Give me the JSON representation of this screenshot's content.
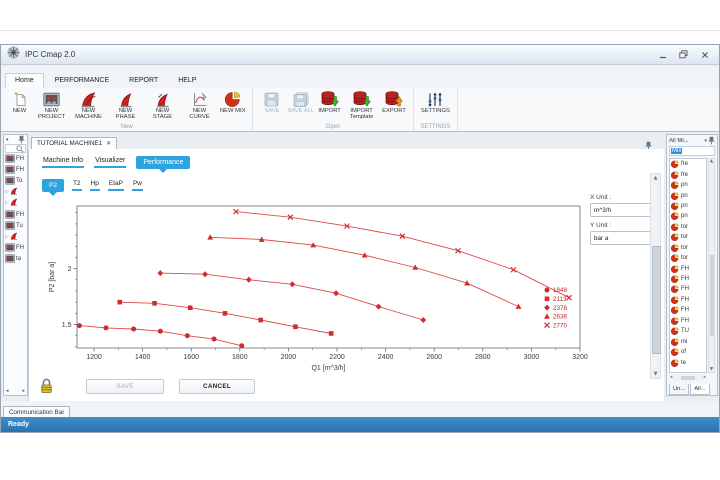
{
  "app": {
    "title": "IPC Cmap 2.0"
  },
  "menu_tabs": [
    {
      "label": "Home",
      "active": true
    },
    {
      "label": "PERFORMANCE",
      "active": false
    },
    {
      "label": "REPORT",
      "active": false
    },
    {
      "label": "HELP",
      "active": false
    }
  ],
  "ribbon_groups": [
    {
      "label": "New",
      "buttons": [
        {
          "label": "NEW",
          "icon": "new-document-icon",
          "disabled": false
        },
        {
          "label": "NEW PROJECT",
          "icon": "new-project-icon",
          "disabled": false
        },
        {
          "label": "NEW MACHINE",
          "icon": "new-machine-icon",
          "disabled": false
        },
        {
          "label": "NEW PHASE",
          "icon": "new-phase-icon",
          "disabled": false
        },
        {
          "label": "NEW STAGE",
          "icon": "new-stage-icon",
          "disabled": false
        },
        {
          "label": "NEW CURVE",
          "icon": "new-curve-icon",
          "disabled": false
        },
        {
          "label": "NEW MIX",
          "icon": "new-mix-icon",
          "disabled": false
        }
      ]
    },
    {
      "label": "Open",
      "buttons": [
        {
          "label": "SAVE",
          "icon": "save-icon",
          "disabled": true
        },
        {
          "label": "SAVE ALL",
          "icon": "save-all-icon",
          "disabled": true
        },
        {
          "label": "IMPORT",
          "icon": "import-icon",
          "disabled": false
        },
        {
          "label": "IMPORT Template",
          "icon": "import-template-icon",
          "disabled": false
        },
        {
          "label": "EXPORT",
          "icon": "export-icon",
          "disabled": false
        }
      ]
    },
    {
      "label": "SETTINGS",
      "buttons": [
        {
          "label": "SETTINGS",
          "icon": "settings-icon",
          "disabled": false
        }
      ]
    }
  ],
  "left_panel": {
    "items": [
      {
        "label": "FH",
        "type": "project"
      },
      {
        "label": "FH",
        "type": "project"
      },
      {
        "label": "To",
        "type": "project"
      },
      {
        "label": "",
        "type": "machine"
      },
      {
        "label": "",
        "type": "machine"
      },
      {
        "label": "FH",
        "type": "project"
      },
      {
        "label": "Tu",
        "type": "project"
      },
      {
        "label": "",
        "type": "machine"
      },
      {
        "label": "FH",
        "type": "project"
      },
      {
        "label": "ta",
        "type": "project"
      }
    ]
  },
  "document": {
    "tab_title": "TUTORIAL MACHINE1",
    "close_glyph": "✕",
    "nav": [
      {
        "label": "Machine Info",
        "active": false
      },
      {
        "label": "Visualizer",
        "active": false
      },
      {
        "label": "Performance",
        "active": true
      }
    ],
    "subnav": [
      {
        "label": "P2",
        "active": true
      },
      {
        "label": "T2",
        "active": false
      },
      {
        "label": "Hp",
        "active": false
      },
      {
        "label": "EtaP",
        "active": false
      },
      {
        "label": "Pw",
        "active": false
      }
    ],
    "x_unit_label": "X Unit :",
    "x_unit_value": "m^3/h",
    "y_unit_label": "Y Unit :",
    "y_unit_value": "bar a",
    "save_label": "SAVE",
    "cancel_label": "CANCEL"
  },
  "right_panel": {
    "title": "All Mi...",
    "filter_text": "Mix",
    "items": [
      "fre",
      "fre",
      "pn",
      "pn",
      "pn",
      "pn",
      "tor",
      "tor",
      "tor",
      "tor",
      "FH",
      "FH",
      "FH",
      "FH",
      "FH",
      "FH",
      "TU",
      "mi",
      "of",
      "te"
    ],
    "tabs": [
      {
        "label": "Un...",
        "active": false
      },
      {
        "label": "All...",
        "active": true
      }
    ]
  },
  "statusbar": {
    "communication_tab": "Communication Bar",
    "status_text": "Ready"
  },
  "colors": {
    "accent_blue": "#2ea4de",
    "curve_red": "#d42a2a",
    "legend_red": "#c22026",
    "status_blue": "#2a72b0"
  },
  "chart_data": {
    "type": "line",
    "title": "",
    "xlabel": "Q1 [m^3/h]",
    "ylabel": "P2 [bar a]",
    "xlim": [
      1130,
      3200
    ],
    "ylim": [
      1.29,
      2.56
    ],
    "x_ticks": [
      1200,
      1400,
      1600,
      1800,
      2000,
      2200,
      2400,
      2600,
      2800,
      3000,
      3200
    ],
    "x_minor_ticks": [
      1300,
      1500,
      1700,
      1900,
      2100,
      2300,
      2500,
      2700,
      2900,
      3100
    ],
    "y_ticks": [
      {
        "v": 1.5,
        "label": "1.5"
      },
      {
        "v": 2,
        "label": "2"
      }
    ],
    "y_minor_ticks": [
      1.3,
      1.4,
      1.6,
      1.7,
      1.8,
      1.9,
      2.1,
      2.2,
      2.3,
      2.4,
      2.5
    ],
    "grid": false,
    "legend_position": "inside-right",
    "series_color": "#d42a2a",
    "series": [
      {
        "name": "1848",
        "marker": "circle",
        "x": [
          1140,
          1249,
          1363,
          1473,
          1584,
          1694,
          1808
        ],
        "y": [
          1.49,
          1.47,
          1.46,
          1.44,
          1.4,
          1.37,
          1.31
        ]
      },
      {
        "name": "2113",
        "marker": "square",
        "x": [
          1306,
          1449,
          1596,
          1739,
          1886,
          2029,
          2176
        ],
        "y": [
          1.7,
          1.69,
          1.65,
          1.6,
          1.54,
          1.48,
          1.42
        ]
      },
      {
        "name": "2378",
        "marker": "diamond",
        "x": [
          1473,
          1657,
          1837,
          2016,
          2196,
          2371,
          2555
        ],
        "y": [
          1.96,
          1.95,
          1.9,
          1.86,
          1.78,
          1.66,
          1.54
        ]
      },
      {
        "name": "2636",
        "marker": "triangle",
        "x": [
          1678,
          1890,
          2102,
          2314,
          2522,
          2735,
          2947
        ],
        "y": [
          2.28,
          2.26,
          2.21,
          2.12,
          2.01,
          1.87,
          1.66
        ]
      },
      {
        "name": "2770",
        "marker": "x",
        "x": [
          1784,
          2008,
          2241,
          2469,
          2698,
          2926,
          3155
        ],
        "y": [
          2.51,
          2.46,
          2.38,
          2.29,
          2.16,
          1.99,
          1.74
        ]
      }
    ]
  }
}
